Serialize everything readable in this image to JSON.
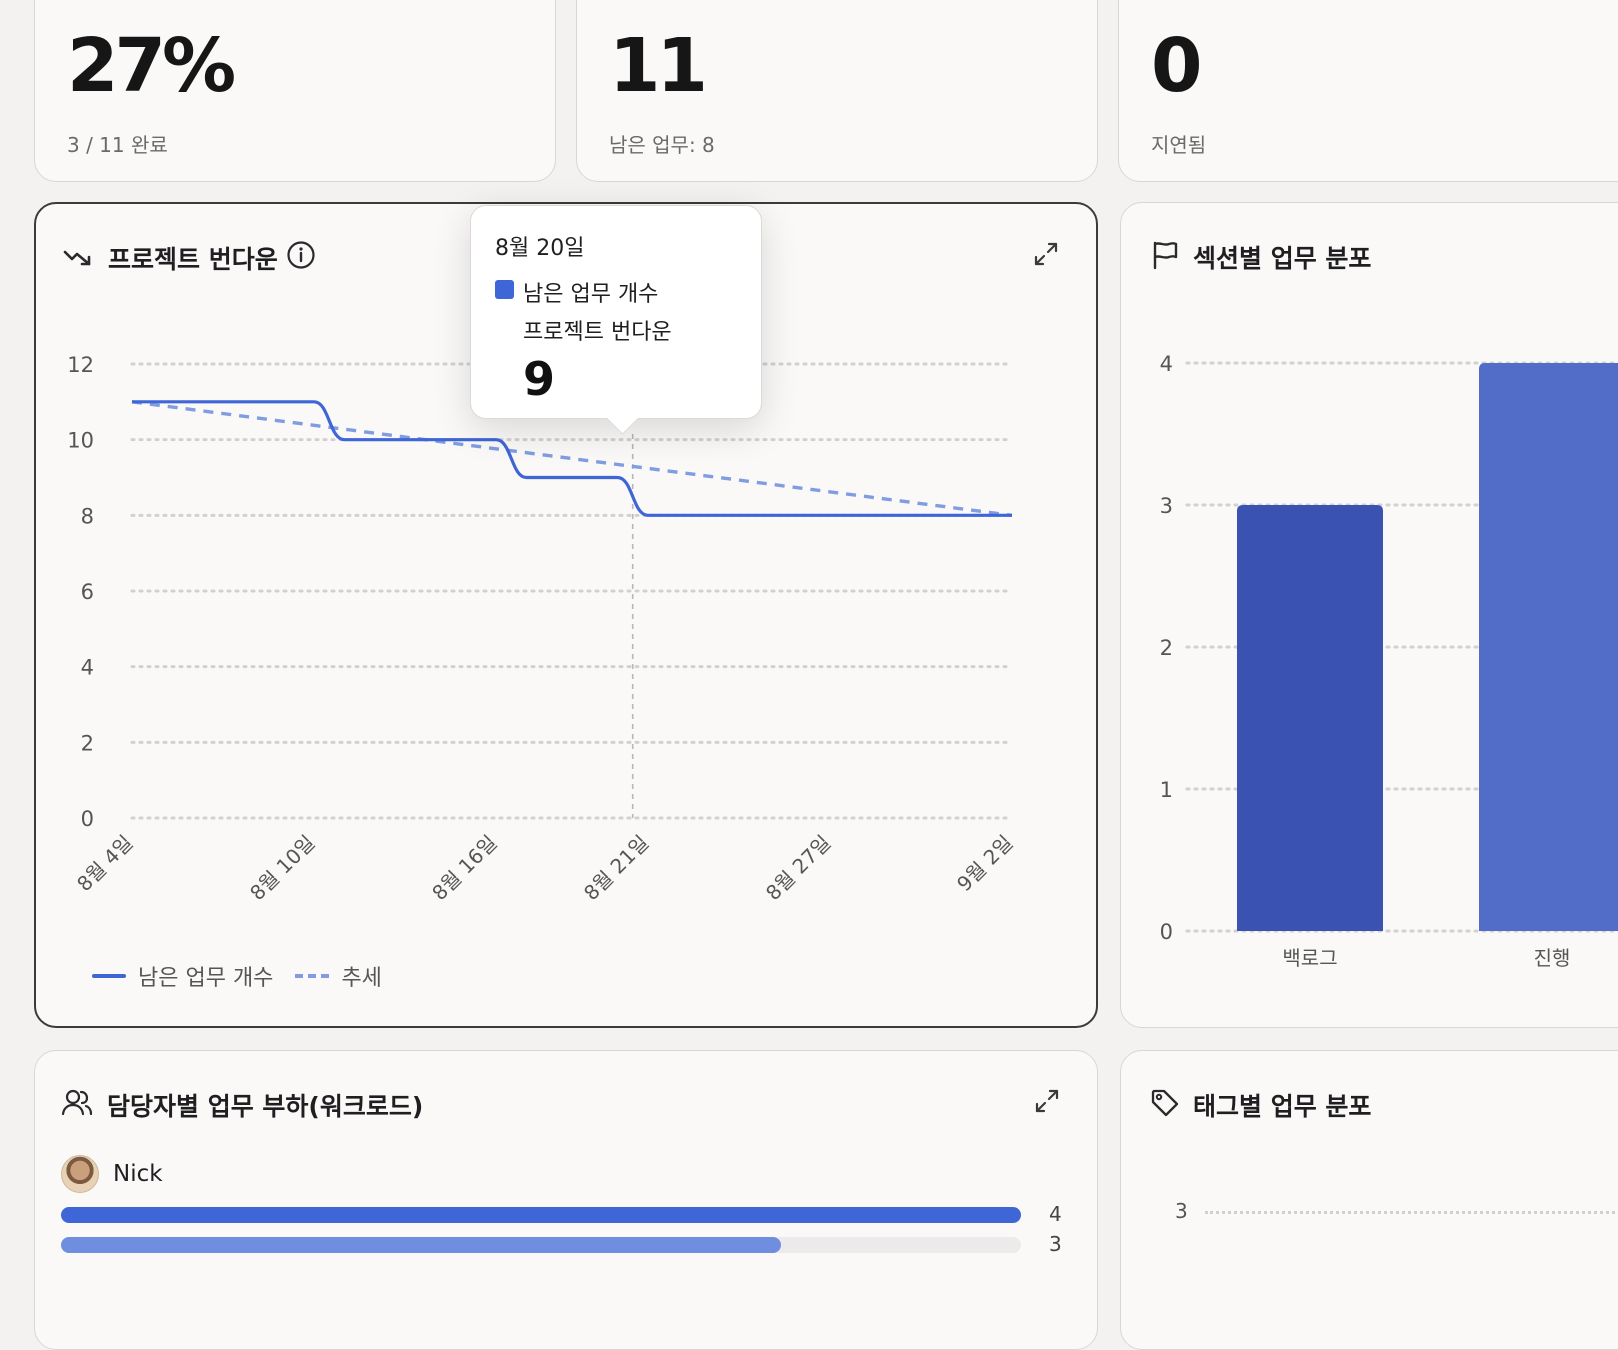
{
  "stats": [
    {
      "value": "27%",
      "sub": "3 / 11 완료"
    },
    {
      "value": "11",
      "sub": "남은 업무: 8"
    },
    {
      "value": "0",
      "sub": "지연됨"
    }
  ],
  "burndown": {
    "title": "프로젝트 번다운",
    "tooltip": {
      "date": "8월 20일",
      "series": "남은 업무 개수",
      "chart": "프로젝트 번다운",
      "value": "9",
      "swatch_color": "#3f66d6"
    },
    "legend": {
      "remaining": "남은 업무 개수",
      "trend": "추세"
    }
  },
  "sections": {
    "title": "섹션별 업무 분포"
  },
  "workload": {
    "title": "담당자별 업무 부하(워크로드)",
    "assignee": "Nick",
    "bars": [
      {
        "value": 4,
        "label": "4",
        "color": "#3f66d6"
      },
      {
        "value": 3,
        "label": "3",
        "color": "#6f8ee0"
      }
    ],
    "max": 5.33
  },
  "tags": {
    "title": "태그별 업무 분포",
    "axis_top": "3"
  },
  "chart_data": [
    {
      "type": "line",
      "title": "프로젝트 번다운",
      "xticks": [
        "8월 4일",
        "8월 10일",
        "8월 16일",
        "8월 21일",
        "8월 27일",
        "9월 2일"
      ],
      "yticks": [
        "0",
        "2",
        "4",
        "6",
        "8",
        "10",
        "12"
      ],
      "ylim": [
        0,
        12
      ],
      "grid": true,
      "legend": "bottom-left",
      "series": [
        {
          "name": "남은 업무 개수",
          "style": "solid",
          "color": "#3f66d6",
          "x": [
            "8월 4일",
            "8월 10일",
            "8월 11일",
            "8월 16일",
            "8월 17일",
            "8월 20일",
            "8월 21일",
            "9월 2일"
          ],
          "y": [
            11,
            11,
            10,
            10,
            9,
            9,
            8,
            8
          ]
        },
        {
          "name": "추세",
          "style": "dashed",
          "color": "#7f9de0",
          "x": [
            "8월 4일",
            "9월 2일"
          ],
          "y": [
            11,
            8
          ]
        }
      ]
    },
    {
      "type": "bar",
      "title": "섹션별 업무 분포",
      "categories": [
        "백로그",
        "진행"
      ],
      "values": [
        3,
        4
      ],
      "yticks": [
        "0",
        "1",
        "2",
        "3",
        "4"
      ],
      "ylim": [
        0,
        4
      ],
      "colors": [
        "#3a53b3",
        "#516dc8"
      ]
    }
  ]
}
